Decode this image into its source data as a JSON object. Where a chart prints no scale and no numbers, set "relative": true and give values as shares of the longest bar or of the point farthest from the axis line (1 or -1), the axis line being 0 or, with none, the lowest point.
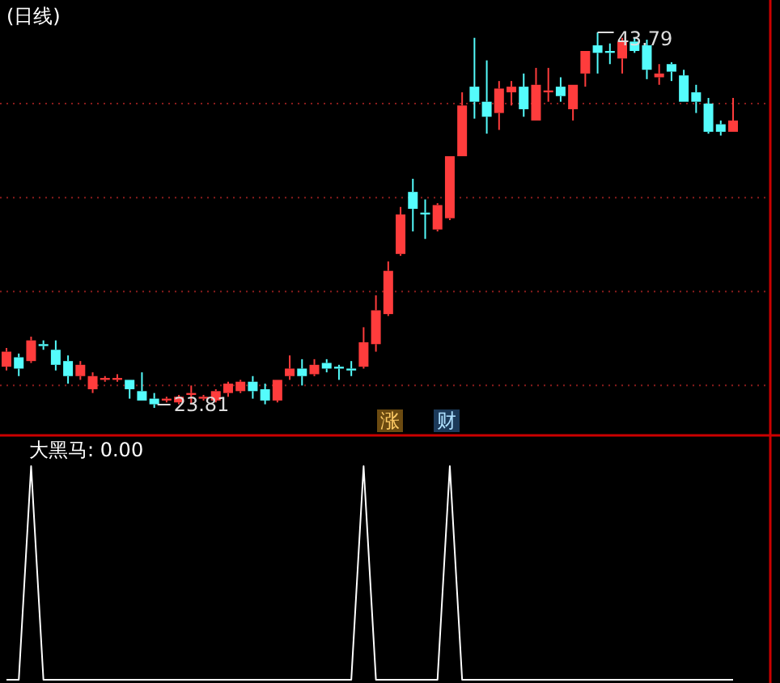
{
  "chart_data": [
    {
      "type": "candlestick",
      "title": "(日线)",
      "categories": [
        null,
        null,
        null,
        null,
        null,
        null,
        null,
        null,
        null,
        null,
        null,
        null,
        null,
        null,
        null,
        null,
        null,
        null,
        null,
        null,
        null,
        null,
        null,
        null,
        null,
        null,
        null,
        null,
        null,
        null,
        null,
        null,
        null,
        null,
        null,
        null,
        null,
        null,
        null,
        null,
        null,
        null,
        null,
        null,
        null,
        null,
        null,
        null,
        null,
        null,
        null,
        null,
        null,
        null,
        null,
        null,
        null,
        null,
        null,
        null
      ],
      "ohlc": [
        [
          26.0,
          27.0,
          25.8,
          26.8
        ],
        [
          26.5,
          26.7,
          25.5,
          25.9
        ],
        [
          26.3,
          27.6,
          26.2,
          27.4
        ],
        [
          27.2,
          27.4,
          26.9,
          27.1
        ],
        [
          26.9,
          27.4,
          25.8,
          26.1
        ],
        [
          26.3,
          26.6,
          25.1,
          25.5
        ],
        [
          25.5,
          26.3,
          25.3,
          26.1
        ],
        [
          24.8,
          25.7,
          24.6,
          25.5
        ],
        [
          25.3,
          25.5,
          25.2,
          25.4
        ],
        [
          25.3,
          25.6,
          25.2,
          25.4
        ],
        [
          25.3,
          25.3,
          24.3,
          24.8
        ],
        [
          24.7,
          25.7,
          24.2,
          24.2
        ],
        [
          24.3,
          24.6,
          23.81,
          24.0
        ],
        [
          24.2,
          24.4,
          24.1,
          24.3
        ],
        [
          24.1,
          24.5,
          24.0,
          24.4
        ],
        [
          24.5,
          25.0,
          24.0,
          24.6
        ],
        [
          24.3,
          24.5,
          24.2,
          24.4
        ],
        [
          24.2,
          24.8,
          24.1,
          24.7
        ],
        [
          24.6,
          25.2,
          24.4,
          25.1
        ],
        [
          24.7,
          25.3,
          24.6,
          25.2
        ],
        [
          25.2,
          25.5,
          24.3,
          24.7
        ],
        [
          24.8,
          25.1,
          24.0,
          24.2
        ],
        [
          24.2,
          25.3,
          24.1,
          25.3
        ],
        [
          25.5,
          26.6,
          25.3,
          25.9
        ],
        [
          25.9,
          26.4,
          25.0,
          25.5
        ],
        [
          25.6,
          26.4,
          25.5,
          26.1
        ],
        [
          26.2,
          26.4,
          25.7,
          25.9
        ],
        [
          26.0,
          26.1,
          25.3,
          25.9
        ],
        [
          25.9,
          26.3,
          25.5,
          25.8
        ],
        [
          26.0,
          28.1,
          25.9,
          27.3
        ],
        [
          27.2,
          29.8,
          26.8,
          29.0
        ],
        [
          28.8,
          31.6,
          28.7,
          31.1
        ],
        [
          32.0,
          34.5,
          31.9,
          34.1
        ],
        [
          35.3,
          36.0,
          33.2,
          34.4
        ],
        [
          34.2,
          34.9,
          32.8,
          34.1
        ],
        [
          33.3,
          34.7,
          33.2,
          34.6
        ],
        [
          33.9,
          37.2,
          33.8,
          37.2
        ],
        [
          37.2,
          40.6,
          37.2,
          39.9
        ],
        [
          40.9,
          43.5,
          39.2,
          40.1
        ],
        [
          40.1,
          42.3,
          38.4,
          39.3
        ],
        [
          39.5,
          41.2,
          38.6,
          40.8
        ],
        [
          40.6,
          41.2,
          39.9,
          40.9
        ],
        [
          40.9,
          41.6,
          39.3,
          39.7
        ],
        [
          39.1,
          41.9,
          39.1,
          41.0
        ],
        [
          40.6,
          41.9,
          40.1,
          40.7
        ],
        [
          40.9,
          41.4,
          40.1,
          40.4
        ],
        [
          39.7,
          41.0,
          39.1,
          41.0
        ],
        [
          41.6,
          42.8,
          40.9,
          42.8
        ],
        [
          43.1,
          43.79,
          41.6,
          42.7
        ],
        [
          42.8,
          43.2,
          42.1,
          42.7
        ],
        [
          42.4,
          43.5,
          41.6,
          43.3
        ],
        [
          43.3,
          43.5,
          42.7,
          42.8
        ],
        [
          43.1,
          43.4,
          41.3,
          41.8
        ],
        [
          41.4,
          42.1,
          41.0,
          41.6
        ],
        [
          42.1,
          42.2,
          41.2,
          41.7
        ],
        [
          41.5,
          41.8,
          40.1,
          40.1
        ],
        [
          40.6,
          41.0,
          39.5,
          40.1
        ],
        [
          40.0,
          40.3,
          38.4,
          38.5
        ],
        [
          38.9,
          39.1,
          38.3,
          38.5
        ],
        [
          38.5,
          40.3,
          38.5,
          39.1
        ]
      ],
      "yticks": [
        {
          "value": 25,
          "label": null
        },
        {
          "value": 30,
          "label": null
        },
        {
          "value": 35,
          "label": null
        },
        {
          "value": 40,
          "label": null
        }
      ],
      "grid": "y",
      "annotations": [
        {
          "text": "43.79",
          "y": 43.79
        },
        {
          "text": "23.81",
          "y": 23.81
        },
        "涨",
        "财"
      ]
    },
    {
      "type": "line",
      "relative": true,
      "title": "大黑马: 0.00",
      "categories": [
        null,
        null,
        null,
        null,
        null,
        null,
        null,
        null,
        null,
        null,
        null,
        null,
        null,
        null,
        null,
        null,
        null,
        null,
        null,
        null,
        null,
        null,
        null,
        null,
        null,
        null,
        null,
        null,
        null,
        null,
        null,
        null,
        null,
        null,
        null,
        null,
        null,
        null,
        null,
        null,
        null,
        null,
        null,
        null,
        null,
        null,
        null,
        null,
        null,
        null,
        null,
        null,
        null,
        null,
        null,
        null,
        null,
        null,
        null,
        null
      ],
      "series": [
        {
          "color": "#ffffff",
          "values": [
            0,
            0,
            1,
            0,
            0,
            0,
            0,
            0,
            0,
            0,
            0,
            0,
            0,
            0,
            0,
            0,
            0,
            0,
            0,
            0,
            0,
            0,
            0,
            0,
            0,
            0,
            0,
            0,
            0,
            1,
            0,
            0,
            0,
            0,
            0,
            0,
            1,
            0,
            0,
            0,
            0,
            0,
            0,
            0,
            0,
            0,
            0,
            0,
            0,
            0,
            0,
            0,
            0,
            0,
            0,
            0,
            0,
            0,
            0,
            0
          ]
        }
      ]
    }
  ]
}
